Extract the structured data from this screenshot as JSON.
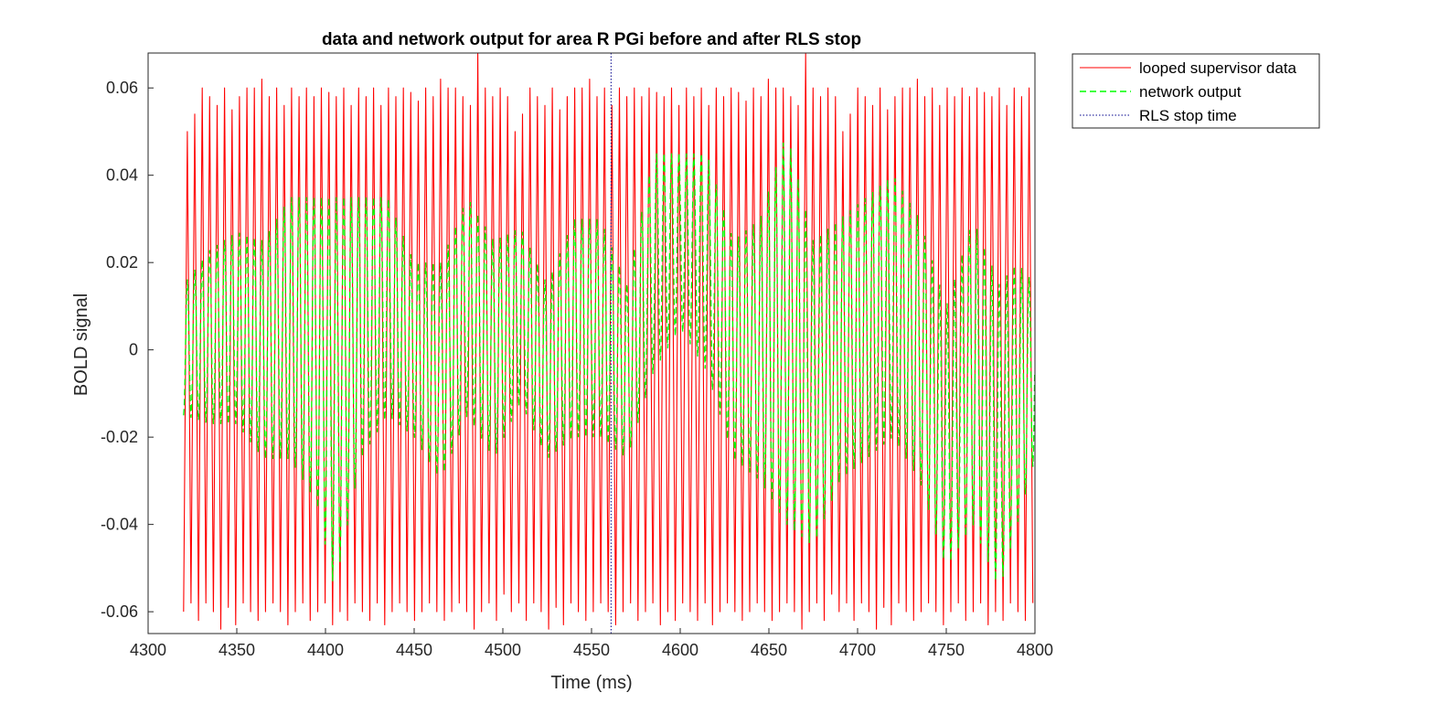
{
  "chart_data": {
    "type": "line",
    "title": "data and network output for area R PGi before and after RLS stop",
    "xlabel": "Time (ms)",
    "ylabel": "BOLD signal",
    "xlim": [
      4300,
      4800
    ],
    "ylim": [
      -0.065,
      0.068
    ],
    "xticks": [
      4300,
      4350,
      4400,
      4450,
      4500,
      4550,
      4600,
      4650,
      4700,
      4750,
      4800
    ],
    "yticks": [
      -0.06,
      -0.04,
      -0.02,
      0,
      0.02,
      0.04,
      0.06
    ],
    "ytick_labels": [
      "-0.06",
      "-0.04",
      "-0.02",
      "0",
      "0.02",
      "0.04",
      "0.06"
    ],
    "legend_position": "outside-top-right",
    "grid": false,
    "series": [
      {
        "name": "looped supervisor data",
        "color": "#ff0000",
        "style": "solid",
        "x_range": [
          4320,
          4800
        ],
        "oscillation_period_ms": 4.2,
        "peak_values": [
          0.05,
          0.054,
          0.06,
          0.058,
          0.056,
          0.06,
          0.055,
          0.058,
          0.06,
          0.06,
          0.062,
          0.058,
          0.06,
          0.056,
          0.06,
          0.058,
          0.06,
          0.058,
          0.06,
          0.059,
          0.058,
          0.06,
          0.056,
          0.06,
          0.058,
          0.06,
          0.056,
          0.06,
          0.058,
          0.06,
          0.059,
          0.057,
          0.06,
          0.058,
          0.062,
          0.06,
          0.06,
          0.058,
          0.056,
          0.068,
          0.06,
          0.058,
          0.06,
          0.058
        ],
        "trough_values": [
          -0.06,
          -0.058,
          -0.062,
          -0.058,
          -0.06,
          -0.064,
          -0.059,
          -0.063,
          -0.058,
          -0.06,
          -0.062,
          -0.06,
          -0.058,
          -0.06,
          -0.063,
          -0.06,
          -0.058,
          -0.062,
          -0.06,
          -0.058,
          -0.063,
          -0.06,
          -0.062,
          -0.058,
          -0.06,
          -0.062,
          -0.058,
          -0.063,
          -0.06,
          -0.058,
          -0.06,
          -0.062,
          -0.06,
          -0.058,
          -0.06,
          -0.062,
          -0.06,
          -0.058,
          -0.06,
          -0.064,
          -0.06,
          -0.058,
          -0.062,
          -0.056
        ]
      },
      {
        "name": "network output",
        "color": "#00ff00",
        "style": "dashed",
        "x_range": [
          4320,
          4800
        ],
        "oscillation_period_ms": 4.2,
        "envelope": [
          {
            "x": 4320,
            "center": 0.0,
            "amp": 0.015
          },
          {
            "x": 4335,
            "center": 0.003,
            "amp": 0.02
          },
          {
            "x": 4350,
            "center": 0.005,
            "amp": 0.022
          },
          {
            "x": 4365,
            "center": 0.0,
            "amp": 0.025
          },
          {
            "x": 4380,
            "center": 0.005,
            "amp": 0.03
          },
          {
            "x": 4395,
            "center": 0.0,
            "amp": 0.035
          },
          {
            "x": 4405,
            "center": -0.01,
            "amp": 0.045
          },
          {
            "x": 4420,
            "center": 0.005,
            "amp": 0.03
          },
          {
            "x": 4435,
            "center": 0.01,
            "amp": 0.025
          },
          {
            "x": 4450,
            "center": 0.0,
            "amp": 0.02
          },
          {
            "x": 4465,
            "center": -0.005,
            "amp": 0.025
          },
          {
            "x": 4480,
            "center": 0.01,
            "amp": 0.025
          },
          {
            "x": 4495,
            "center": 0.0,
            "amp": 0.025
          },
          {
            "x": 4510,
            "center": 0.008,
            "amp": 0.02
          },
          {
            "x": 4525,
            "center": -0.005,
            "amp": 0.02
          },
          {
            "x": 4540,
            "center": 0.005,
            "amp": 0.025
          },
          {
            "x": 4555,
            "center": 0.005,
            "amp": 0.025
          },
          {
            "x": 4570,
            "center": -0.005,
            "amp": 0.02
          },
          {
            "x": 4585,
            "center": 0.02,
            "amp": 0.025
          },
          {
            "x": 4600,
            "center": 0.025,
            "amp": 0.02
          },
          {
            "x": 4615,
            "center": 0.02,
            "amp": 0.025
          },
          {
            "x": 4630,
            "center": 0.0,
            "amp": 0.025
          },
          {
            "x": 4645,
            "center": 0.0,
            "amp": 0.03
          },
          {
            "x": 4660,
            "center": 0.005,
            "amp": 0.045
          },
          {
            "x": 4675,
            "center": -0.01,
            "amp": 0.035
          },
          {
            "x": 4690,
            "center": 0.0,
            "amp": 0.03
          },
          {
            "x": 4705,
            "center": 0.005,
            "amp": 0.03
          },
          {
            "x": 4720,
            "center": 0.01,
            "amp": 0.03
          },
          {
            "x": 4735,
            "center": 0.0,
            "amp": 0.03
          },
          {
            "x": 4750,
            "center": -0.02,
            "amp": 0.03
          },
          {
            "x": 4765,
            "center": -0.005,
            "amp": 0.035
          },
          {
            "x": 4780,
            "center": -0.02,
            "amp": 0.035
          },
          {
            "x": 4790,
            "center": -0.01,
            "amp": 0.03
          },
          {
            "x": 4800,
            "center": -0.005,
            "amp": 0.02
          }
        ]
      },
      {
        "name": "RLS stop time",
        "color": "#00008b",
        "style": "dotted",
        "x": 4561
      }
    ]
  }
}
